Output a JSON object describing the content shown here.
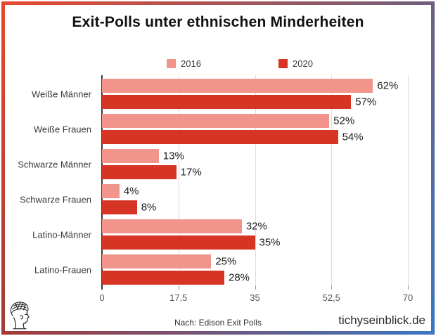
{
  "title": "Exit-Polls unter ethnischen Minderheiten",
  "legend": [
    {
      "label": "2016",
      "color": "#f0948c"
    },
    {
      "label": "2020",
      "color": "#d63425"
    }
  ],
  "chart_data": {
    "type": "bar",
    "orientation": "horizontal",
    "title": "Exit-Polls unter ethnischen Minderheiten",
    "categories": [
      "Weiße Männer",
      "Weiße Frauen",
      "Schwarze Männer",
      "Schwarze Frauen",
      "Latino-Männer",
      "Latino-Frauen"
    ],
    "series": [
      {
        "name": "2016",
        "color": "#f0948c",
        "values": [
          62,
          52,
          13,
          4,
          32,
          25
        ]
      },
      {
        "name": "2020",
        "color": "#d63425",
        "values": [
          57,
          54,
          17,
          8,
          35,
          28
        ]
      }
    ],
    "value_suffix": "%",
    "xlim": [
      0,
      70
    ],
    "xticks": [
      0,
      17.5,
      35,
      52.5,
      70
    ],
    "xtick_labels": [
      "0",
      "17,5",
      "35",
      "52,5",
      "70"
    ],
    "grid": true,
    "legend_position": "top"
  },
  "frame_colors": {
    "top_left": "#e6492d",
    "top_right": "#6e5f7e",
    "bottom_left": "#a43938",
    "bottom_right": "#3a77c2"
  },
  "colors": {
    "gridline": "#dcdcdc",
    "axis": "#3a3a3a",
    "tick": "#9a9a9a"
  },
  "footer": {
    "source": "Nach: Edison Exit Polls",
    "site": "tichyseinblick.de"
  },
  "logo": {
    "name": "tichys-einblick-head-logo"
  }
}
